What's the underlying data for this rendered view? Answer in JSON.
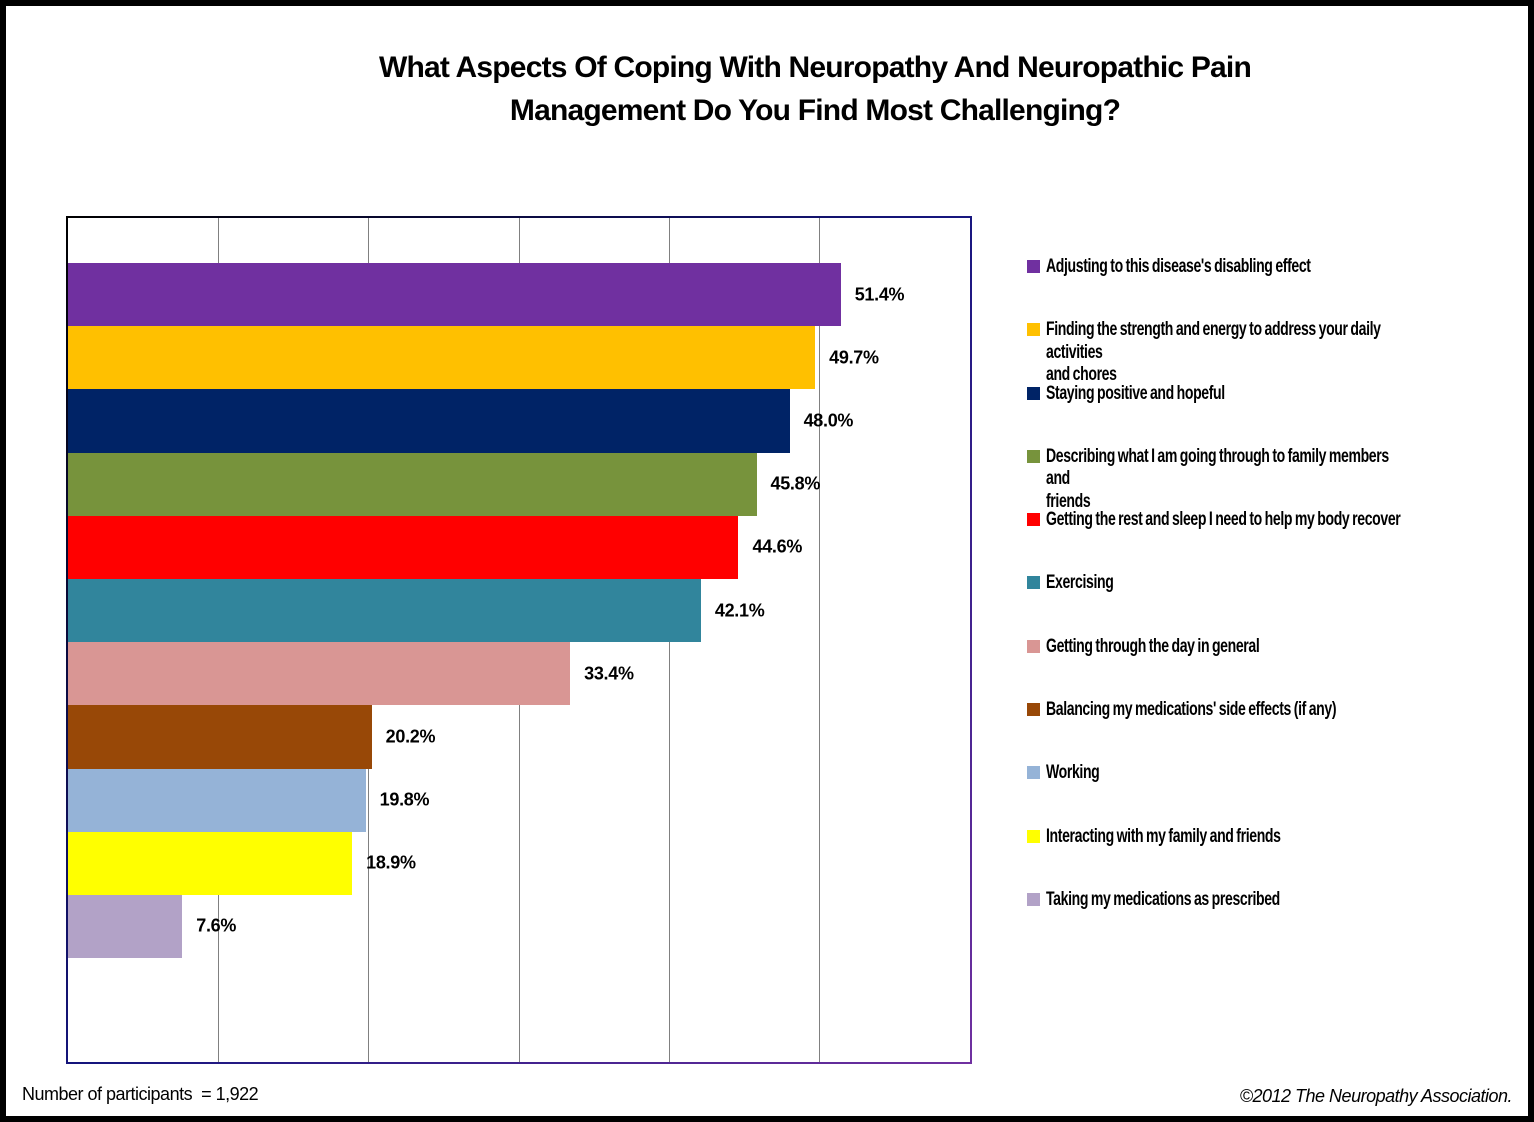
{
  "title": {
    "line1": "What Aspects Of Coping With Neuropathy And Neuropathic Pain",
    "line2": "Management Do You Find Most Challenging?"
  },
  "chart_data": {
    "type": "bar",
    "orientation": "horizontal",
    "title": "What Aspects Of Coping With Neuropathy And Neuropathic Pain Management Do You Find Most Challenging?",
    "x_axis": {
      "min": 0,
      "max": 60,
      "gridline_interval": 10,
      "unit": "percent",
      "tick_labels_visible": false
    },
    "grid": true,
    "legend_position": "right",
    "categories": [
      "Adjusting to this disease's disabling effect",
      "Finding the strength and energy to address your daily activities and chores",
      "Staying positive and hopeful",
      "Describing what I am going through to family members and friends",
      "Getting the rest and sleep I need to help my body recover",
      "Exercising",
      "Getting through the day in general",
      "Balancing my medications' side effects (if any)",
      "Working",
      "Interacting with my family and friends",
      "Taking my medications as prescribed"
    ],
    "values": [
      51.4,
      49.7,
      48.0,
      45.8,
      44.6,
      42.1,
      33.4,
      20.2,
      19.8,
      18.9,
      7.6
    ],
    "value_labels": [
      "51.4%",
      "49.7%",
      "48.0%",
      "45.8%",
      "44.6%",
      "42.1%",
      "33.4%",
      "20.2%",
      "19.8%",
      "18.9%",
      "7.6%"
    ],
    "colors": [
      "#7030a0",
      "#ffc000",
      "#002366",
      "#77933c",
      "#ff0000",
      "#31859c",
      "#d99694",
      "#984807",
      "#95b3d7",
      "#ffff00",
      "#b2a2c7"
    ],
    "gridline_color": "#808080"
  },
  "legend": {
    "items": [
      {
        "label": "Adjusting to this disease's disabling effect",
        "color": "#7030a0"
      },
      {
        "label": "Finding the strength and energy to address your daily activities\nand chores",
        "color": "#ffc000"
      },
      {
        "label": "Staying positive and hopeful",
        "color": "#002366"
      },
      {
        "label": "Describing what I am going through to family members and\nfriends",
        "color": "#77933c"
      },
      {
        "label": "Getting the rest and sleep I need to help my body recover",
        "color": "#ff0000"
      },
      {
        "label": "Exercising",
        "color": "#31859c"
      },
      {
        "label": "Getting through the day in general",
        "color": "#d99694"
      },
      {
        "label": "Balancing my medications' side effects (if any)",
        "color": "#984807"
      },
      {
        "label": "Working",
        "color": "#95b3d7"
      },
      {
        "label": "Interacting with my family and friends",
        "color": "#ffff00"
      },
      {
        "label": "Taking my medications as prescribed",
        "color": "#b2a2c7"
      }
    ]
  },
  "footer": {
    "participants": "Number of participants  = 1,922",
    "copyright": "©2012 The Neuropathy Association."
  }
}
